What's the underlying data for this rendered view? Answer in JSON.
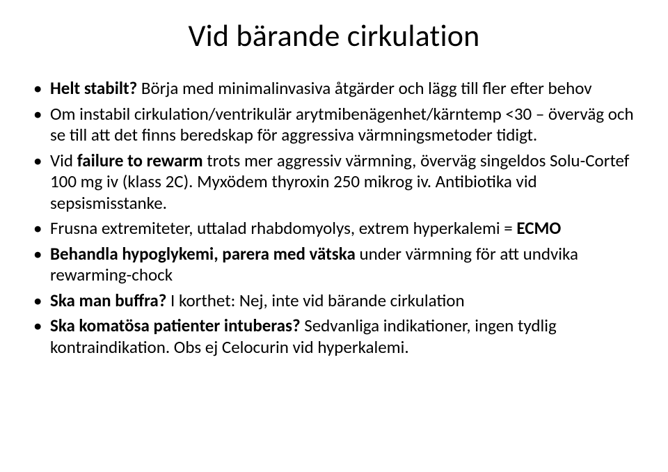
{
  "slide": {
    "title": "Vid bärande cirkulation",
    "bullets": [
      {
        "segments": [
          {
            "text": "Helt stabilt?",
            "bold": true
          },
          {
            "text": " Börja med minimalinvasiva åtgärder och lägg till fler efter behov",
            "bold": false
          }
        ]
      },
      {
        "segments": [
          {
            "text": "Om instabil cirkulation/ventrikulär arytmibenägenhet/kärntemp <30 – överväg och se till att det finns beredskap för aggressiva värmningsmetoder tidigt.",
            "bold": false
          }
        ]
      },
      {
        "segments": [
          {
            "text": "Vid ",
            "bold": false
          },
          {
            "text": "failure to rewarm",
            "bold": true
          },
          {
            "text": " trots mer aggressiv värmning, överväg singeldos Solu-Cortef 100 mg iv (klass 2C). Myxödem thyroxin 250 mikrog iv. Antibiotika vid sepsismisstanke.",
            "bold": false
          }
        ]
      },
      {
        "segments": [
          {
            "text": "Frusna extremiteter, uttalad rhabdomyolys, extrem hyperkalemi = ",
            "bold": false
          },
          {
            "text": "ECMO",
            "bold": true
          }
        ]
      },
      {
        "segments": [
          {
            "text": "Behandla hypoglykemi, parera med vätska ",
            "bold": true
          },
          {
            "text": "under värmning för att undvika rewarming-chock",
            "bold": false
          }
        ]
      },
      {
        "segments": [
          {
            "text": "Ska man buffra?",
            "bold": true
          },
          {
            "text": " I korthet: Nej, inte vid bärande cirkulation",
            "bold": false
          }
        ]
      },
      {
        "segments": [
          {
            "text": "Ska komatösa patienter intuberas?",
            "bold": true
          },
          {
            "text": " Sedvanliga indikationer, ingen tydlig kontraindikation. Obs ej Celocurin vid hyperkalemi.",
            "bold": false
          }
        ]
      }
    ]
  }
}
